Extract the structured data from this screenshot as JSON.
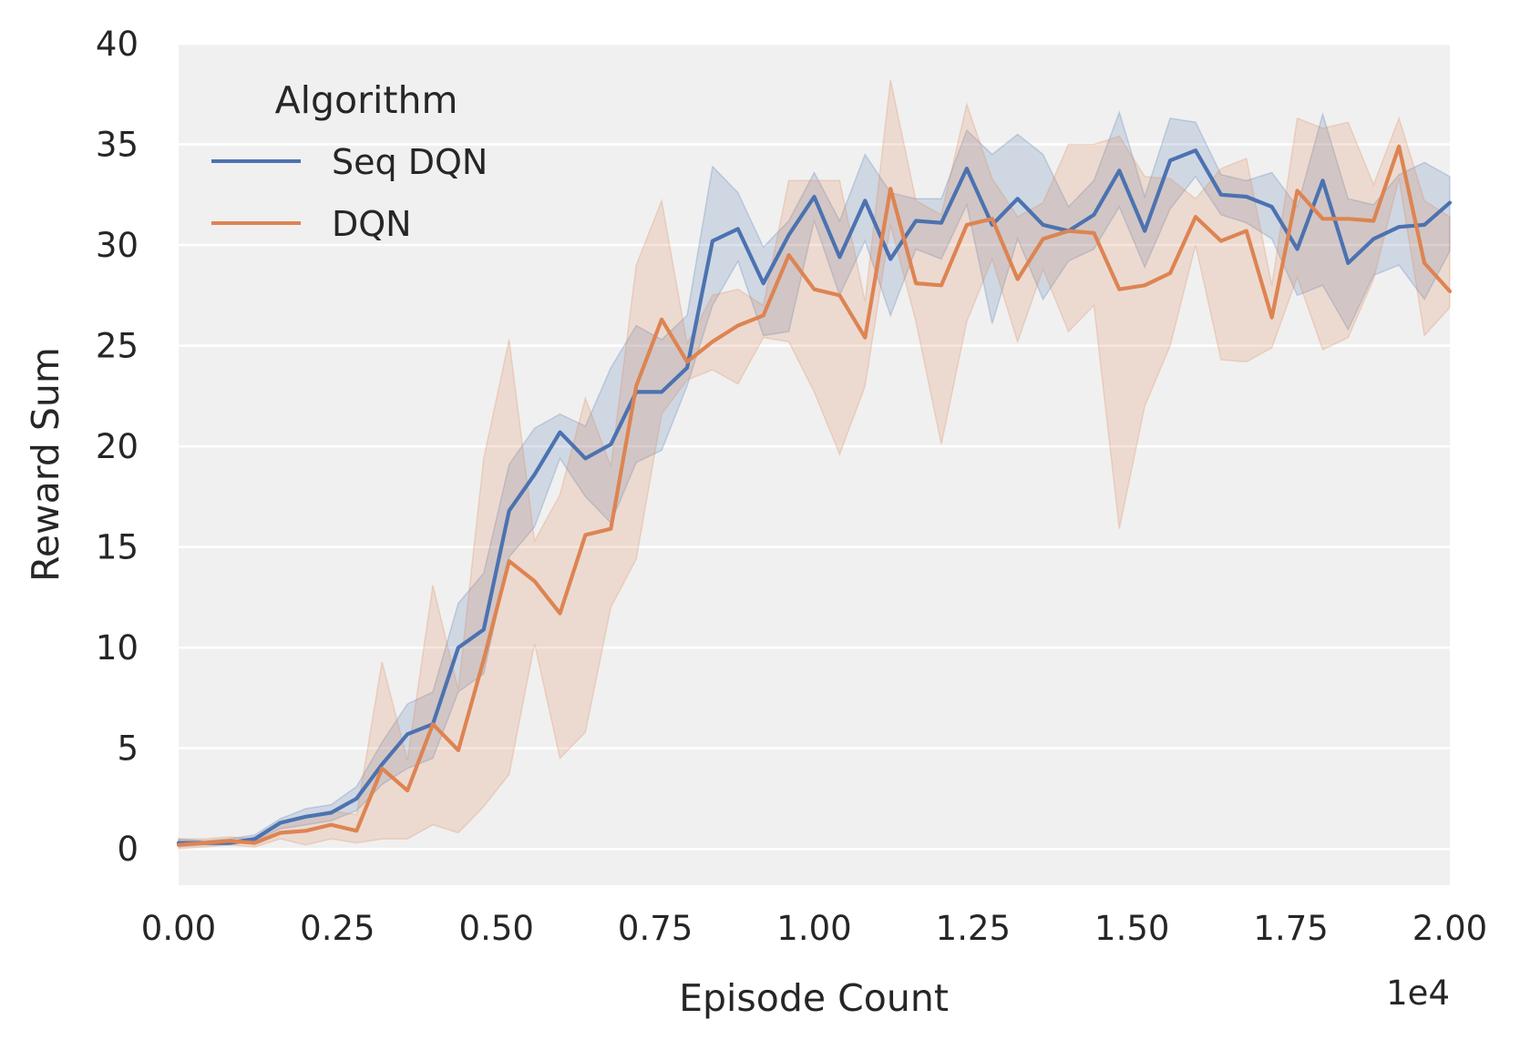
{
  "chart_data": {
    "type": "line",
    "title": "",
    "xlabel": "Episode Count",
    "ylabel": "Reward Sum",
    "x_offset_label": "1e4",
    "xlim": [
      0,
      2.0
    ],
    "ylim": [
      -1.8,
      40
    ],
    "x_ticks": [
      "0.00",
      "0.25",
      "0.50",
      "0.75",
      "1.00",
      "1.25",
      "1.50",
      "1.75",
      "2.00"
    ],
    "x_tick_values": [
      0,
      0.25,
      0.5,
      0.75,
      1.0,
      1.25,
      1.5,
      1.75,
      2.0
    ],
    "y_ticks": [
      "0",
      "5",
      "10",
      "15",
      "20",
      "25",
      "30",
      "35",
      "40"
    ],
    "y_tick_values": [
      0,
      5,
      10,
      15,
      20,
      25,
      30,
      35,
      40
    ],
    "grid": "horizontal",
    "legend": {
      "title": "Algorithm",
      "placement": "upper-left"
    },
    "x": [
      0,
      0.04,
      0.08,
      0.12,
      0.16,
      0.2,
      0.24,
      0.28,
      0.32,
      0.36,
      0.4,
      0.44,
      0.48,
      0.52,
      0.56,
      0.6,
      0.64,
      0.68,
      0.72,
      0.76,
      0.8,
      0.84,
      0.88,
      0.92,
      0.96,
      1.0,
      1.04,
      1.08,
      1.12,
      1.16,
      1.2,
      1.24,
      1.28,
      1.32,
      1.36,
      1.4,
      1.44,
      1.48,
      1.52,
      1.56,
      1.6,
      1.64,
      1.68,
      1.72,
      1.76,
      1.8,
      1.84,
      1.88,
      1.92,
      1.96,
      2.0
    ],
    "series": [
      {
        "name": "Seq DQN",
        "color": "#4c72b0",
        "values": [
          0.3,
          0.3,
          0.3,
          0.5,
          1.3,
          1.6,
          1.8,
          2.5,
          4.2,
          5.7,
          6.2,
          10.0,
          10.9,
          16.8,
          18.6,
          20.7,
          19.4,
          20.1,
          22.7,
          22.7,
          23.9,
          30.2,
          30.8,
          28.1,
          30.5,
          32.4,
          29.4,
          32.2,
          29.3,
          31.2,
          31.1,
          33.8,
          31.0,
          32.3,
          31.0,
          30.7,
          31.5,
          33.7,
          30.7,
          34.2,
          34.7,
          32.5,
          32.4,
          31.9,
          29.8,
          33.2,
          29.1,
          30.3,
          30.9,
          31.0,
          32.1
        ],
        "lower": [
          0.1,
          0.2,
          0.2,
          0.4,
          1.0,
          1.2,
          1.4,
          1.9,
          3.2,
          4.0,
          4.5,
          7.8,
          8.7,
          14.5,
          16.0,
          19.4,
          17.5,
          16.2,
          19.2,
          19.8,
          23.0,
          27.0,
          29.2,
          25.5,
          25.7,
          31.2,
          27.5,
          30.2,
          26.5,
          29.8,
          29.3,
          32.0,
          26.1,
          30.3,
          27.3,
          29.2,
          29.8,
          31.9,
          28.9,
          31.8,
          33.4,
          31.5,
          31.1,
          30.3,
          27.5,
          28.0,
          25.8,
          28.5,
          29.0,
          27.3,
          29.7
        ],
        "upper": [
          0.5,
          0.4,
          0.5,
          0.7,
          1.5,
          2.0,
          2.2,
          3.1,
          5.3,
          7.2,
          7.8,
          12.2,
          13.7,
          19.1,
          20.9,
          21.6,
          21.0,
          23.9,
          26.0,
          25.3,
          26.5,
          33.9,
          32.6,
          29.9,
          31.2,
          33.6,
          31.2,
          34.5,
          32.6,
          32.3,
          32.3,
          35.7,
          34.5,
          35.5,
          34.5,
          31.9,
          33.2,
          36.6,
          32.4,
          36.3,
          36.1,
          33.5,
          33.2,
          33.6,
          31.9,
          36.5,
          32.3,
          32.0,
          33.5,
          34.1,
          33.4
        ]
      },
      {
        "name": "DQN",
        "color": "#dd8452",
        "values": [
          0.2,
          0.3,
          0.4,
          0.3,
          0.8,
          0.9,
          1.2,
          0.9,
          4.0,
          2.9,
          6.2,
          4.9,
          9.4,
          14.3,
          13.3,
          11.7,
          15.6,
          15.9,
          23.0,
          26.3,
          24.2,
          25.2,
          26.0,
          26.5,
          29.5,
          27.8,
          27.5,
          25.4,
          32.8,
          28.1,
          28.0,
          31.0,
          31.3,
          28.3,
          30.3,
          30.7,
          30.6,
          27.8,
          28.0,
          28.6,
          31.4,
          30.2,
          30.7,
          26.4,
          32.7,
          31.3,
          31.3,
          31.2,
          34.9,
          29.1,
          27.7
        ],
        "lower": [
          0.0,
          0.1,
          0.2,
          0.1,
          0.5,
          0.2,
          0.5,
          0.3,
          0.5,
          0.5,
          1.2,
          0.8,
          2.1,
          3.7,
          10.2,
          4.5,
          5.8,
          12.0,
          14.4,
          21.6,
          23.3,
          23.8,
          23.1,
          25.4,
          25.2,
          22.7,
          19.6,
          23.0,
          31.0,
          26.2,
          20.1,
          26.2,
          29.3,
          25.2,
          28.8,
          25.7,
          27.0,
          15.9,
          22.0,
          25.0,
          30.0,
          24.3,
          24.2,
          24.9,
          28.4,
          24.8,
          25.4,
          28.3,
          33.3,
          25.5,
          26.9
        ],
        "upper": [
          0.5,
          0.5,
          0.6,
          0.5,
          1.2,
          1.6,
          1.9,
          1.7,
          9.3,
          4.4,
          13.1,
          7.9,
          19.4,
          25.3,
          15.3,
          17.6,
          22.4,
          19.0,
          29.0,
          32.2,
          25.1,
          27.5,
          27.8,
          27.0,
          33.2,
          33.2,
          33.2,
          27.2,
          38.2,
          32.2,
          31.5,
          37.0,
          33.3,
          31.4,
          32.1,
          35.0,
          35.0,
          35.4,
          33.4,
          33.3,
          32.3,
          33.8,
          34.3,
          28.0,
          36.3,
          35.8,
          36.1,
          33.0,
          36.3,
          32.2,
          31.4
        ]
      }
    ]
  }
}
